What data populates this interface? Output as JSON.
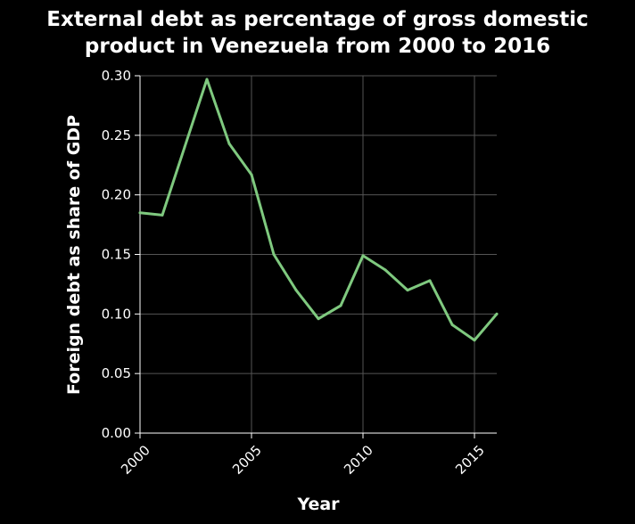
{
  "chart_data": {
    "type": "line",
    "title_lines": [
      "External debt as percentage of gross domestic",
      "product in Venezuela from 2000 to 2016"
    ],
    "xlabel": "Year",
    "ylabel": "Foreign debt as share of GDP",
    "xlim": [
      2000,
      2016
    ],
    "ylim": [
      0,
      0.3
    ],
    "x_ticks": [
      2000,
      2005,
      2010,
      2015
    ],
    "y_ticks": [
      "0.00",
      "0.05",
      "0.10",
      "0.15",
      "0.20",
      "0.25",
      "0.30"
    ],
    "grid": true,
    "series": [
      {
        "color": "#7fc97f",
        "x": [
          2000,
          2001,
          2002,
          2003,
          2004,
          2005,
          2006,
          2007,
          2008,
          2009,
          2010,
          2011,
          2012,
          2013,
          2014,
          2015,
          2016
        ],
        "y": [
          0.185,
          0.183,
          0.24,
          0.297,
          0.243,
          0.217,
          0.15,
          0.12,
          0.096,
          0.107,
          0.149,
          0.137,
          0.12,
          0.128,
          0.091,
          0.078,
          0.1
        ]
      }
    ]
  }
}
